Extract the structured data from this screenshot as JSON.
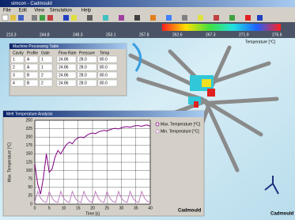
{
  "window": {
    "title": "simcon - Cadmould"
  },
  "menu": [
    "File",
    "Edit",
    "View",
    "Simulation",
    "Help"
  ],
  "scale": {
    "labels": [
      "213.3",
      "244.8",
      "248.3",
      "253.1",
      "257.8",
      "262.6",
      "267.3",
      "271.9",
      "276.6"
    ],
    "unit": "Temperature [°C]"
  },
  "table_window": {
    "title": "Machine Processing Table",
    "headers": [
      "Cavity",
      "Profile",
      "Gate",
      "Flow Rate",
      "Pressure",
      "Temp"
    ],
    "rows": [
      [
        "1",
        "A",
        "1",
        "24.86",
        "28.0",
        "80.0"
      ],
      [
        "2",
        "A",
        "1",
        "24.86",
        "28.0",
        "80.0"
      ],
      [
        "3",
        "B",
        "2",
        "24.86",
        "28.0",
        "80.0"
      ],
      [
        "4",
        "B",
        "2",
        "24.86",
        "28.0",
        "80.0"
      ]
    ]
  },
  "chart_window": {
    "title": "Melt Temperature Analysis",
    "chart_data": {
      "type": "line",
      "x_label": "Time [s]",
      "y_label": "Max. Temperature [°C]",
      "x": [
        0,
        1,
        2,
        3,
        4,
        5,
        6,
        7,
        8,
        9,
        10,
        11,
        12,
        13,
        14,
        15,
        16,
        17,
        18,
        19,
        20,
        21,
        22,
        23,
        24,
        25,
        26,
        27,
        28,
        29,
        30,
        31,
        32,
        33,
        34,
        35,
        36,
        37,
        38,
        39,
        40
      ],
      "series": [
        {
          "name": "Max. Temperature [°C]",
          "color": "#800080",
          "values": [
            120,
            60,
            30,
            80,
            150,
            95,
            105,
            140,
            160,
            150,
            165,
            178,
            185,
            180,
            192,
            198,
            200,
            198,
            205,
            210,
            212,
            210,
            215,
            218,
            220,
            218,
            222,
            225,
            226,
            224,
            228,
            230,
            231,
            229,
            232,
            234,
            234,
            232,
            235,
            236,
            232
          ]
        },
        {
          "name": "Min. Temperature [°C]",
          "color": "#c080c0",
          "values": [
            5,
            38,
            18,
            8,
            5,
            38,
            18,
            8,
            5,
            38,
            18,
            8,
            5,
            38,
            18,
            8,
            5,
            38,
            18,
            8,
            5,
            38,
            18,
            8,
            5,
            38,
            18,
            8,
            5,
            38,
            18,
            8,
            5,
            38,
            18,
            8,
            5,
            38,
            18,
            8,
            5
          ]
        }
      ],
      "xlim": [
        0,
        40
      ],
      "xticks": [
        0,
        5,
        10,
        15,
        20,
        25,
        30,
        35,
        40
      ],
      "ylim": [
        0,
        250
      ],
      "yticks": [
        0,
        25,
        50,
        75,
        100,
        125,
        150,
        175,
        200,
        225,
        250
      ],
      "grid": true
    }
  },
  "brand": "Cadmould"
}
